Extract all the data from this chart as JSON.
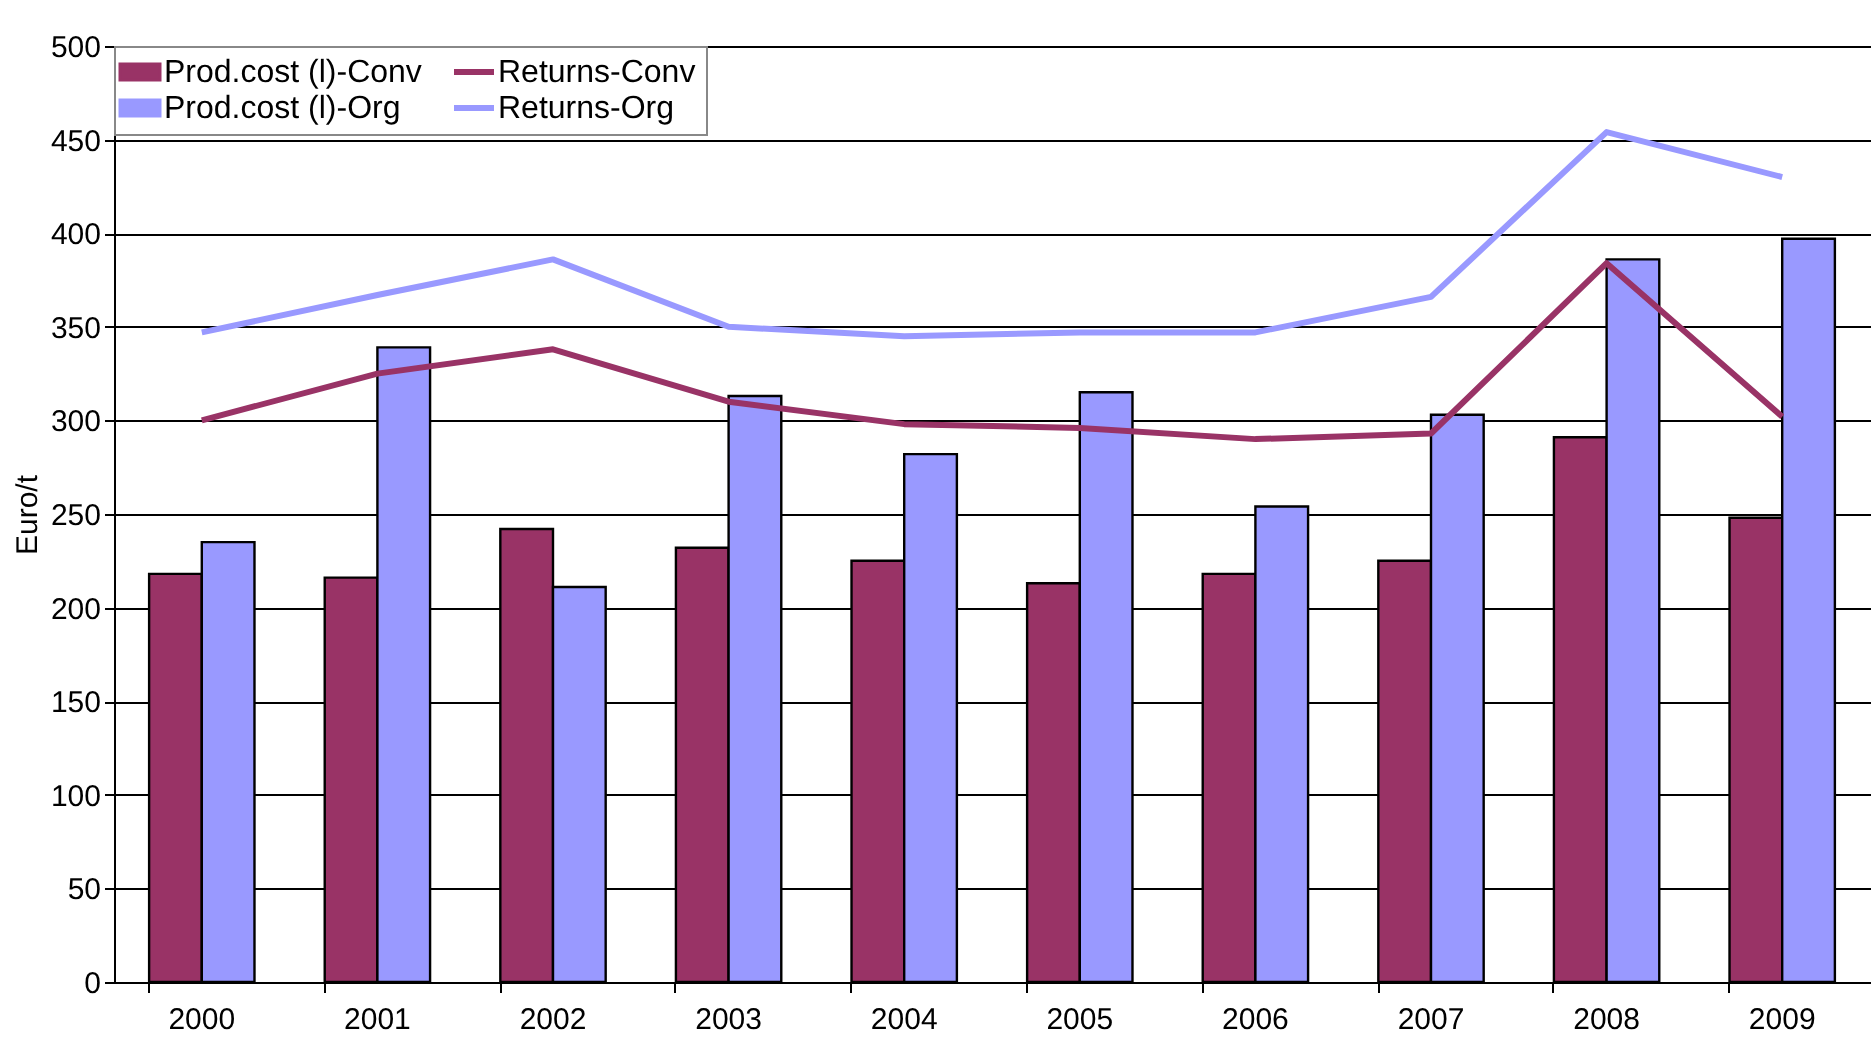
{
  "chart_data": {
    "type": "bar",
    "ylabel": "Euro/t",
    "categories": [
      "2000",
      "2001",
      "2002",
      "2003",
      "2004",
      "2005",
      "2006",
      "2007",
      "2008",
      "2009"
    ],
    "series": [
      {
        "name": "Prod.cost (l)-Conv",
        "color": "#993366",
        "values": [
          218,
          216,
          242,
          232,
          225,
          213,
          218,
          225,
          291,
          248
        ]
      },
      {
        "name": "Prod.cost (l)-Org",
        "color": "#9999ff",
        "values": [
          235,
          339,
          211,
          313,
          282,
          315,
          254,
          303,
          386,
          397
        ]
      },
      {
        "name": "Returns-Conv",
        "type": "line",
        "color": "#993366",
        "values": [
          300,
          325,
          338,
          310,
          298,
          296,
          290,
          293,
          384,
          302
        ]
      },
      {
        "name": "Returns-Org",
        "type": "line",
        "color": "#9999ff",
        "values": [
          347,
          367,
          386,
          350,
          345,
          347,
          347,
          366,
          454,
          430
        ]
      }
    ],
    "ylim": [
      0,
      500
    ],
    "yticks": [
      0,
      50,
      100,
      150,
      200,
      250,
      300,
      350,
      400,
      450,
      500
    ],
    "grid": "y",
    "legend": "top left"
  }
}
